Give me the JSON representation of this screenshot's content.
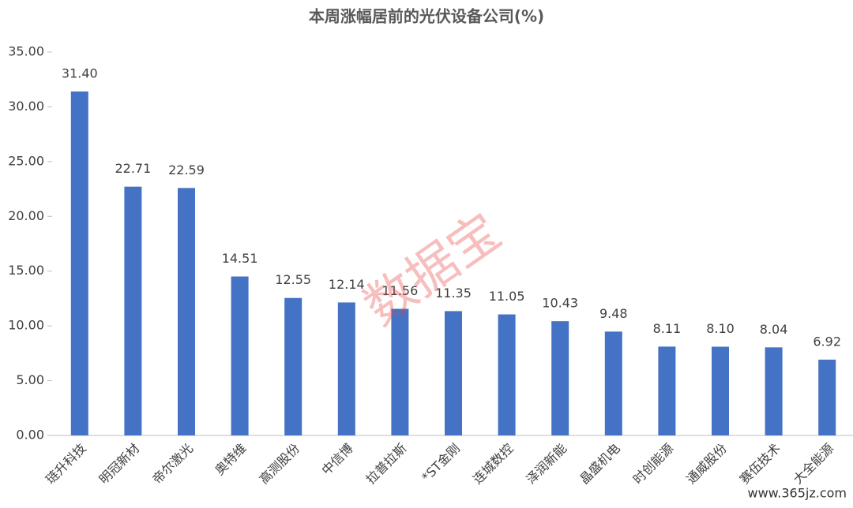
{
  "chart_data": {
    "type": "bar",
    "title": "本周涨幅居前的光伏设备公司(%)",
    "categories": [
      "琏升科技",
      "明冠新材",
      "帝尔激光",
      "奥特维",
      "高测股份",
      "中信博",
      "拉普拉斯",
      "*ST金刚",
      "连城数控",
      "泽润新能",
      "晶盛机电",
      "时创能源",
      "通威股份",
      "赛伍技术",
      "大全能源"
    ],
    "values": [
      31.4,
      22.71,
      22.59,
      14.51,
      12.55,
      12.14,
      11.56,
      11.35,
      11.05,
      10.43,
      9.48,
      8.11,
      8.1,
      8.04,
      6.92
    ],
    "value_labels": [
      "31.40",
      "22.71",
      "22.59",
      "14.51",
      "12.55",
      "12.14",
      "11.56",
      "11.35",
      "11.05",
      "10.43",
      "9.48",
      "8.11",
      "8.10",
      "8.04",
      "6.92"
    ],
    "color": "#4472c4",
    "ylim": [
      0,
      35
    ],
    "yticks": [
      {
        "value": 0,
        "label": "0.00"
      },
      {
        "value": 5,
        "label": "5.00"
      },
      {
        "value": 10,
        "label": "10.00"
      },
      {
        "value": 15,
        "label": "15.00"
      },
      {
        "value": 20,
        "label": "20.00"
      },
      {
        "value": 25,
        "label": "25.00"
      },
      {
        "value": 30,
        "label": "30.00"
      },
      {
        "value": 35,
        "label": "35.00"
      }
    ],
    "grid": false,
    "watermark": "数据宝",
    "site_watermark": "www.365jz.com"
  }
}
